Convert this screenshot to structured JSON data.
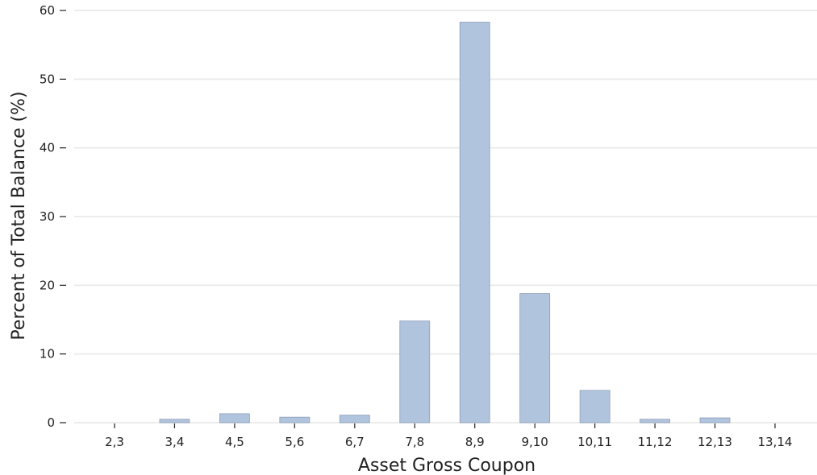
{
  "chart_data": {
    "type": "bar",
    "title": "",
    "xlabel": "Asset Gross Coupon",
    "ylabel": "Percent of Total Balance (%)",
    "categories": [
      "2,3",
      "3,4",
      "4,5",
      "5,6",
      "6,7",
      "7,8",
      "8,9",
      "9,10",
      "10,11",
      "11,12",
      "12,13",
      "13,14"
    ],
    "values": [
      0.0,
      0.5,
      1.3,
      0.8,
      1.1,
      14.8,
      58.3,
      18.8,
      4.7,
      0.5,
      0.7,
      0.0
    ],
    "ylim": [
      0,
      61.5
    ],
    "yticks": [
      0,
      10,
      20,
      30,
      40,
      50,
      60
    ],
    "grid": true,
    "legend": "none",
    "colors": {
      "bar_fill": "#b0c4de",
      "bar_edge": "#8e9fb6",
      "grid": "#ececec",
      "text": "#222222"
    }
  }
}
